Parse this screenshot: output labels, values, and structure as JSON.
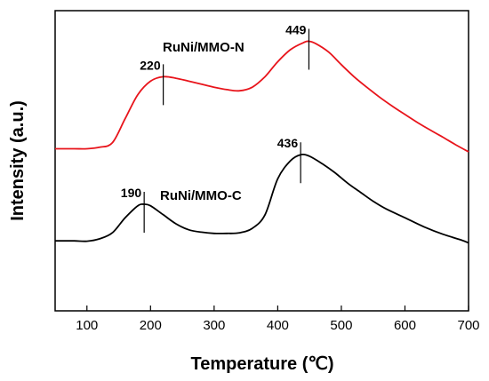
{
  "chart_data": {
    "type": "line",
    "xlabel": "Temperature (℃)",
    "ylabel": "Intensity (a.u.)",
    "xlim": [
      50,
      700
    ],
    "xticks": [
      100,
      200,
      300,
      400,
      500,
      600,
      700
    ],
    "yticks_shown": false,
    "grid": false,
    "series": [
      {
        "name": "RuNi/MMO-N",
        "color": "#e8141b",
        "points": [
          [
            50,
            0.54
          ],
          [
            80,
            0.54
          ],
          [
            100,
            0.54
          ],
          [
            120,
            0.545
          ],
          [
            140,
            0.56
          ],
          [
            160,
            0.64
          ],
          [
            180,
            0.72
          ],
          [
            200,
            0.765
          ],
          [
            220,
            0.78
          ],
          [
            240,
            0.775
          ],
          [
            260,
            0.765
          ],
          [
            280,
            0.755
          ],
          [
            300,
            0.745
          ],
          [
            320,
            0.737
          ],
          [
            340,
            0.733
          ],
          [
            360,
            0.745
          ],
          [
            380,
            0.78
          ],
          [
            400,
            0.83
          ],
          [
            420,
            0.87
          ],
          [
            440,
            0.893
          ],
          [
            449,
            0.898
          ],
          [
            460,
            0.89
          ],
          [
            480,
            0.862
          ],
          [
            500,
            0.82
          ],
          [
            520,
            0.78
          ],
          [
            540,
            0.745
          ],
          [
            560,
            0.712
          ],
          [
            580,
            0.682
          ],
          [
            600,
            0.654
          ],
          [
            620,
            0.627
          ],
          [
            640,
            0.602
          ],
          [
            660,
            0.578
          ],
          [
            680,
            0.553
          ],
          [
            700,
            0.53
          ]
        ]
      },
      {
        "name": "RuNi/MMO-C",
        "color": "#000000",
        "points": [
          [
            50,
            0.233
          ],
          [
            80,
            0.233
          ],
          [
            100,
            0.232
          ],
          [
            120,
            0.24
          ],
          [
            140,
            0.26
          ],
          [
            160,
            0.31
          ],
          [
            180,
            0.35
          ],
          [
            190,
            0.355
          ],
          [
            200,
            0.35
          ],
          [
            220,
            0.32
          ],
          [
            240,
            0.29
          ],
          [
            260,
            0.27
          ],
          [
            280,
            0.262
          ],
          [
            300,
            0.258
          ],
          [
            320,
            0.258
          ],
          [
            340,
            0.26
          ],
          [
            360,
            0.275
          ],
          [
            380,
            0.32
          ],
          [
            400,
            0.44
          ],
          [
            420,
            0.5
          ],
          [
            436,
            0.52
          ],
          [
            450,
            0.515
          ],
          [
            470,
            0.49
          ],
          [
            490,
            0.46
          ],
          [
            510,
            0.425
          ],
          [
            530,
            0.395
          ],
          [
            550,
            0.365
          ],
          [
            570,
            0.34
          ],
          [
            600,
            0.31
          ],
          [
            630,
            0.28
          ],
          [
            660,
            0.255
          ],
          [
            690,
            0.235
          ],
          [
            700,
            0.226
          ]
        ]
      }
    ],
    "annotations": [
      {
        "text": "220",
        "x": 220,
        "series": 0
      },
      {
        "text": "449",
        "x": 449,
        "series": 0
      },
      {
        "text": "190",
        "x": 190,
        "series": 1
      },
      {
        "text": "436",
        "x": 436,
        "series": 1
      }
    ]
  }
}
